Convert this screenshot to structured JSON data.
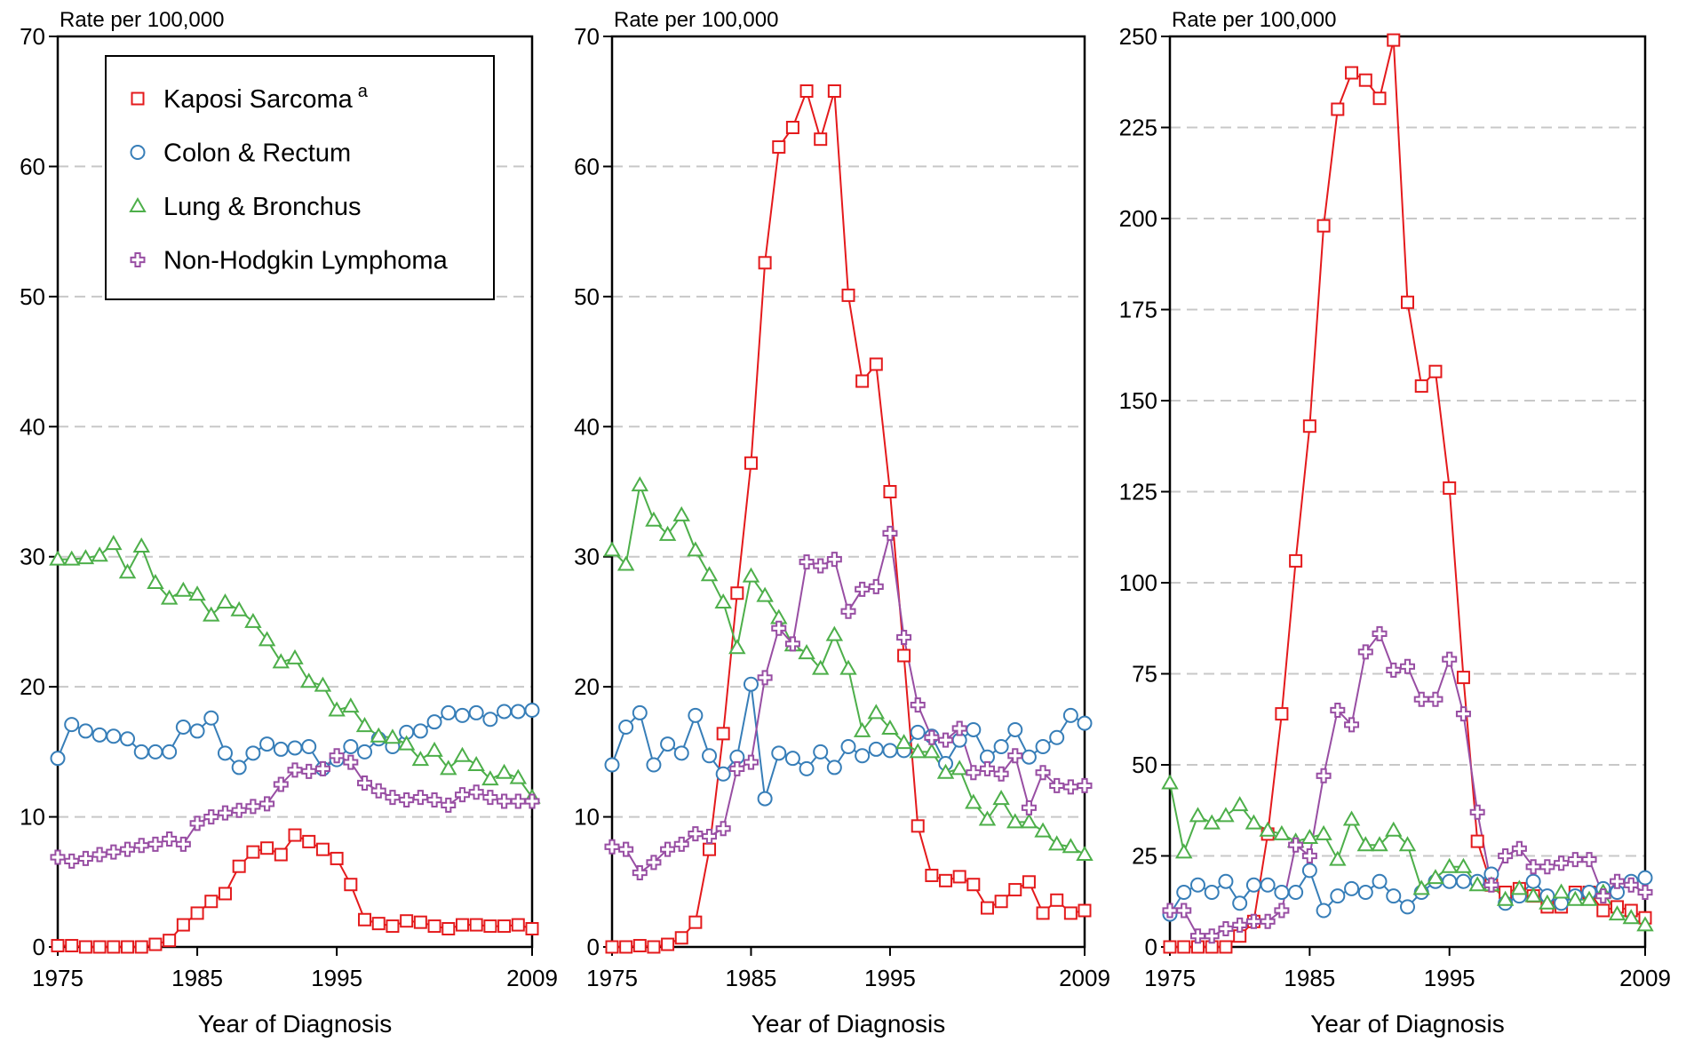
{
  "chart_data": [
    {
      "type": "line",
      "ylabel": "Rate per 100,000",
      "xlabel": "Year of Diagnosis",
      "x": [
        1975,
        1976,
        1977,
        1978,
        1979,
        1980,
        1981,
        1982,
        1983,
        1984,
        1985,
        1986,
        1987,
        1988,
        1989,
        1990,
        1991,
        1992,
        1993,
        1994,
        1995,
        1996,
        1997,
        1998,
        1999,
        2000,
        2001,
        2002,
        2003,
        2004,
        2005,
        2006,
        2007,
        2008,
        2009
      ],
      "xlim": [
        1975,
        2009
      ],
      "xticks": [
        1975,
        1985,
        1995,
        2009
      ],
      "ylim": [
        0,
        70
      ],
      "yticks": [
        0,
        10,
        20,
        30,
        40,
        50,
        60,
        70
      ],
      "grid": true,
      "legend": "upper-left",
      "series": [
        {
          "name": "Kaposi Sarcoma",
          "footnote": "a",
          "color": "#e41a1c",
          "marker": "square",
          "values": [
            0.1,
            0.1,
            0,
            0,
            0,
            0,
            0,
            0.2,
            0.5,
            1.7,
            2.6,
            3.5,
            4.1,
            6.2,
            7.3,
            7.6,
            7.1,
            8.6,
            8.1,
            7.5,
            6.8,
            4.8,
            2.1,
            1.8,
            1.6,
            2.0,
            1.9,
            1.6,
            1.4,
            1.7,
            1.7,
            1.6,
            1.6,
            1.7,
            1.4
          ]
        },
        {
          "name": "Colon & Rectum",
          "color": "#377eb8",
          "marker": "circle",
          "values": [
            14.5,
            17.1,
            16.6,
            16.3,
            16.2,
            16.0,
            15.0,
            15.0,
            15.0,
            16.9,
            16.6,
            17.6,
            14.9,
            13.8,
            14.9,
            15.6,
            15.2,
            15.3,
            15.4,
            13.7,
            14.4,
            15.4,
            15.0,
            16.0,
            15.4,
            16.5,
            16.6,
            17.3,
            18.0,
            17.8,
            18.0,
            17.5,
            18.1,
            18.1,
            18.2
          ]
        },
        {
          "name": "Lung & Bronchus",
          "color": "#4daf4a",
          "marker": "triangle",
          "values": [
            29.8,
            29.8,
            29.9,
            30.1,
            31.0,
            28.8,
            30.8,
            28.0,
            26.8,
            27.4,
            27.1,
            25.5,
            26.5,
            25.9,
            25.0,
            23.6,
            21.9,
            22.2,
            20.4,
            20.1,
            18.2,
            18.5,
            17.0,
            16.2,
            16.1,
            15.6,
            14.4,
            15.1,
            13.7,
            14.7,
            14.0,
            12.9,
            13.4,
            13.0,
            11.5
          ]
        },
        {
          "name": "Non-Hodgkin Lymphoma",
          "color": "#984ea3",
          "marker": "plus",
          "values": [
            6.9,
            6.6,
            6.8,
            7.1,
            7.3,
            7.5,
            7.8,
            7.9,
            8.3,
            7.9,
            9.5,
            10.0,
            10.3,
            10.5,
            10.8,
            11.0,
            12.5,
            13.6,
            13.5,
            13.7,
            14.7,
            14.2,
            12.6,
            12.0,
            11.5,
            11.3,
            11.5,
            11.3,
            10.9,
            11.7,
            11.9,
            11.5,
            11.2,
            11.2,
            11.2
          ]
        }
      ]
    },
    {
      "type": "line",
      "ylabel": "Rate per 100,000",
      "xlabel": "Year of Diagnosis",
      "x": [
        1975,
        1976,
        1977,
        1978,
        1979,
        1980,
        1981,
        1982,
        1983,
        1984,
        1985,
        1986,
        1987,
        1988,
        1989,
        1990,
        1991,
        1992,
        1993,
        1994,
        1995,
        1996,
        1997,
        1998,
        1999,
        2000,
        2001,
        2002,
        2003,
        2004,
        2005,
        2006,
        2007,
        2008,
        2009
      ],
      "xlim": [
        1975,
        2009
      ],
      "xticks": [
        1975,
        1985,
        1995,
        2009
      ],
      "ylim": [
        0,
        70
      ],
      "yticks": [
        0,
        10,
        20,
        30,
        40,
        50,
        60,
        70
      ],
      "grid": true,
      "series": [
        {
          "color": "#e41a1c",
          "marker": "square",
          "values": [
            0,
            0,
            0.1,
            0,
            0.2,
            0.7,
            1.9,
            7.5,
            16.4,
            27.2,
            37.2,
            52.6,
            61.5,
            63.0,
            65.8,
            62.1,
            65.8,
            50.1,
            43.5,
            44.8,
            35.0,
            22.4,
            9.3,
            5.5,
            5.1,
            5.4,
            4.8,
            3.0,
            3.5,
            4.4,
            5.0,
            2.6,
            3.6,
            2.6,
            2.8
          ]
        },
        {
          "color": "#377eb8",
          "marker": "circle",
          "values": [
            14.0,
            16.9,
            18.0,
            14.0,
            15.6,
            14.9,
            17.8,
            14.7,
            13.3,
            14.6,
            20.2,
            11.4,
            14.9,
            14.5,
            13.7,
            15.0,
            13.8,
            15.4,
            14.7,
            15.2,
            15.1,
            15.1,
            16.5,
            16.2,
            14.1,
            15.9,
            16.7,
            14.6,
            15.4,
            16.7,
            14.6,
            15.4,
            16.1,
            17.8,
            17.2
          ]
        },
        {
          "color": "#4daf4a",
          "marker": "triangle",
          "values": [
            30.5,
            29.4,
            35.5,
            32.8,
            31.7,
            33.2,
            30.5,
            28.6,
            26.5,
            23.0,
            28.5,
            27.0,
            25.3,
            23.2,
            22.6,
            21.4,
            24.0,
            21.4,
            16.6,
            18.0,
            16.8,
            15.7,
            15.0,
            15.0,
            13.4,
            13.7,
            11.1,
            9.8,
            11.4,
            9.6,
            9.6,
            8.9,
            7.9,
            7.7,
            7.1
          ]
        },
        {
          "color": "#984ea3",
          "marker": "plus",
          "values": [
            7.7,
            7.5,
            5.7,
            6.5,
            7.5,
            7.9,
            8.7,
            8.5,
            9.1,
            13.7,
            14.2,
            20.7,
            24.5,
            23.3,
            29.6,
            29.3,
            29.8,
            25.8,
            27.5,
            27.7,
            31.8,
            23.8,
            18.6,
            16.1,
            15.9,
            16.8,
            13.4,
            13.7,
            13.3,
            14.7,
            10.7,
            13.4,
            12.4,
            12.3,
            12.4
          ]
        }
      ]
    },
    {
      "type": "line",
      "ylabel": "Rate per 100,000",
      "xlabel": "Year of Diagnosis",
      "x": [
        1975,
        1976,
        1977,
        1978,
        1979,
        1980,
        1981,
        1982,
        1983,
        1984,
        1985,
        1986,
        1987,
        1988,
        1989,
        1990,
        1991,
        1992,
        1993,
        1994,
        1995,
        1996,
        1997,
        1998,
        1999,
        2000,
        2001,
        2002,
        2003,
        2004,
        2005,
        2006,
        2007,
        2008,
        2009
      ],
      "xlim": [
        1975,
        2009
      ],
      "xticks": [
        1975,
        1985,
        1995,
        2009
      ],
      "ylim": [
        0,
        250
      ],
      "yticks": [
        0,
        25,
        50,
        75,
        100,
        125,
        150,
        175,
        200,
        225,
        250
      ],
      "grid": true,
      "series": [
        {
          "color": "#e41a1c",
          "marker": "square",
          "values": [
            0,
            0,
            0,
            0,
            0,
            3,
            7,
            31,
            64,
            106,
            143,
            198,
            230,
            240,
            238,
            233,
            249,
            177,
            154,
            158,
            126,
            74,
            29,
            17,
            15,
            16,
            14,
            11,
            11,
            15,
            15,
            10,
            11,
            10,
            8
          ]
        },
        {
          "color": "#377eb8",
          "marker": "circle",
          "values": [
            9,
            15,
            17,
            15,
            18,
            12,
            17,
            17,
            15,
            15,
            21,
            10,
            14,
            16,
            15,
            18,
            14,
            11,
            15,
            18,
            18,
            18,
            18,
            20,
            12,
            14,
            18,
            14,
            12,
            14,
            15,
            16,
            15,
            18,
            19
          ]
        },
        {
          "color": "#4daf4a",
          "marker": "triangle",
          "values": [
            45,
            26,
            36,
            34,
            36,
            39,
            34,
            32,
            31,
            29,
            30,
            31,
            24,
            35,
            28,
            28,
            32,
            28,
            16,
            19,
            22,
            22,
            17,
            17,
            13,
            16,
            14,
            12,
            15,
            13,
            13,
            15,
            9,
            8,
            6
          ]
        },
        {
          "color": "#984ea3",
          "marker": "plus",
          "values": [
            10,
            10,
            3,
            3,
            5,
            6,
            7,
            7,
            10,
            28,
            25,
            47,
            65,
            61,
            81,
            86,
            76,
            77,
            68,
            68,
            79,
            64,
            37,
            17,
            25,
            27,
            22,
            22,
            23,
            24,
            24,
            14,
            18,
            17,
            15
          ]
        }
      ]
    }
  ]
}
